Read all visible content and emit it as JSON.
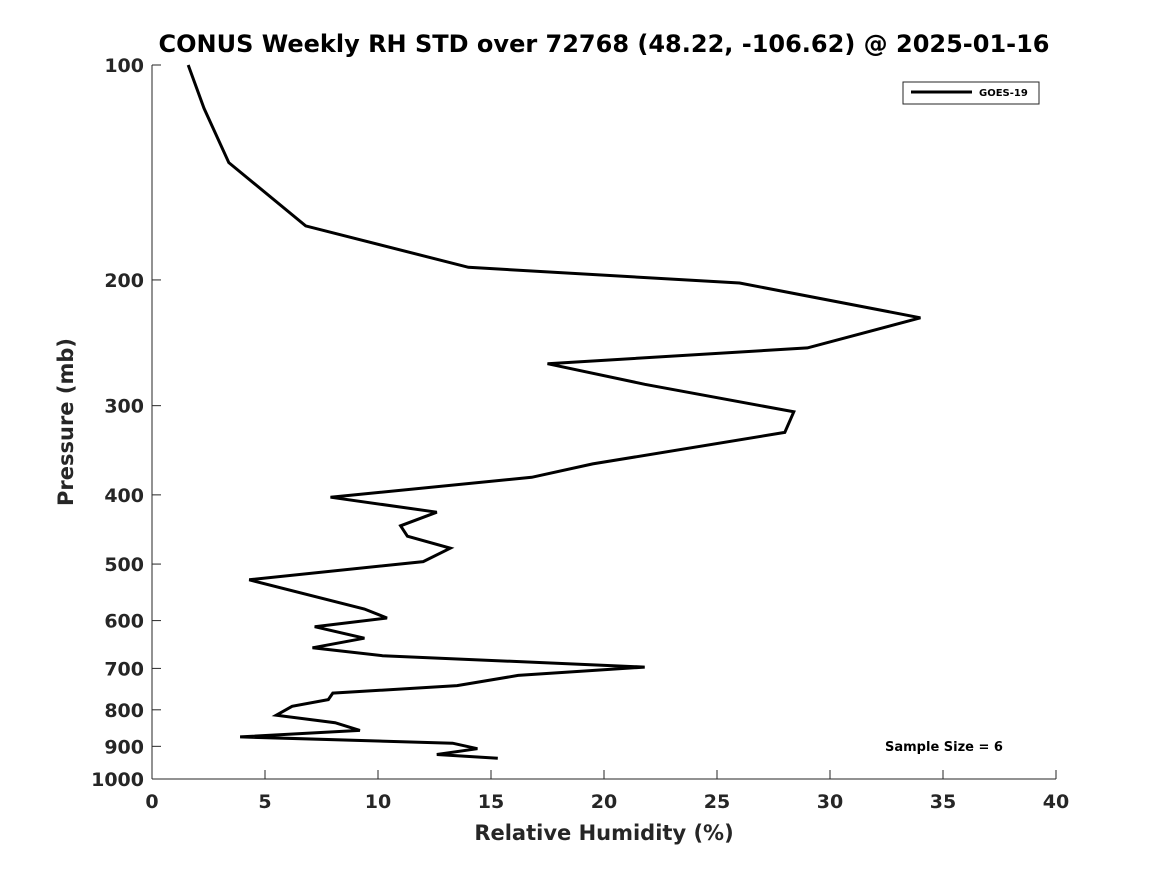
{
  "chart_data": {
    "type": "line",
    "title": "CONUS Weekly RH STD over 72768 (48.22, -106.62) @ 2025-01-16",
    "xlabel": "Relative Humidity (%)",
    "ylabel": "Pressure (mb)",
    "xlim": [
      0,
      40
    ],
    "ylim": [
      100,
      1000
    ],
    "y_scale": "log",
    "y_reversed": true,
    "x_ticks": [
      "0",
      "5",
      "10",
      "15",
      "20",
      "25",
      "30",
      "35",
      "40"
    ],
    "y_ticks": [
      "100",
      "200",
      "300",
      "400",
      "500",
      "600",
      "700",
      "800",
      "900",
      "1000"
    ],
    "grid": false,
    "legend_position": "top-right",
    "annotation": "Sample Size = 6",
    "series": [
      {
        "name": "GOES-19",
        "color": "#000000",
        "x": [
          1.6,
          2.3,
          3.4,
          6.8,
          14.0,
          26.0,
          34.0,
          29.0,
          17.5,
          21.8,
          28.4,
          28.0,
          19.5,
          16.8,
          7.9,
          12.6,
          11.0,
          11.3,
          13.2,
          12.0,
          4.3,
          9.4,
          10.4,
          7.2,
          9.4,
          7.1,
          10.2,
          21.8,
          16.2,
          13.5,
          8.0,
          7.8,
          6.2,
          5.5,
          8.1,
          9.2,
          3.9,
          13.3,
          14.4,
          12.6,
          15.3
        ],
        "y": [
          100,
          115,
          137,
          168,
          192,
          202,
          226,
          249,
          262,
          280,
          306,
          327,
          362,
          378,
          403,
          423,
          442,
          457,
          475,
          496,
          526,
          578,
          595,
          612,
          635,
          655,
          672,
          697,
          716,
          740,
          758,
          774,
          791,
          814,
          834,
          855,
          873,
          891,
          907,
          924,
          935
        ]
      }
    ]
  }
}
